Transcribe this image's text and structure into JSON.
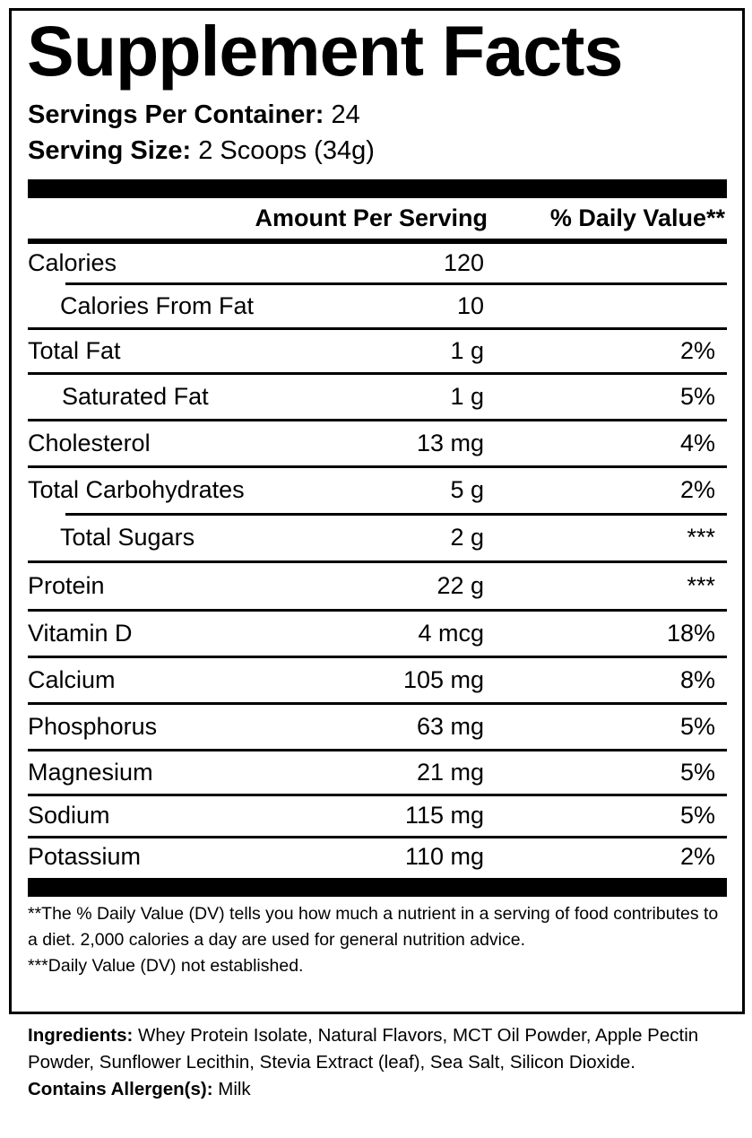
{
  "title": "Supplement Facts",
  "servings_per_container": {
    "label": "Servings Per Container:",
    "value": "24"
  },
  "serving_size": {
    "label": "Serving Size:",
    "value": "2 Scoops (34g)"
  },
  "header": {
    "amount": "Amount Per Serving",
    "dv": "% Daily Value**"
  },
  "rows": [
    {
      "label": "Calories",
      "amount": "120",
      "dv": ""
    },
    {
      "label": "Calories From Fat",
      "amount": "10",
      "dv": ""
    },
    {
      "label": "Total Fat",
      "amount": "1 g",
      "dv": "2%"
    },
    {
      "label": "Saturated Fat",
      "amount": "1 g",
      "dv": "5%"
    },
    {
      "label": "Cholesterol",
      "amount": "13 mg",
      "dv": "4%"
    },
    {
      "label": "Total Carbohydrates",
      "amount": "5 g",
      "dv": "2%"
    },
    {
      "label": "Total Sugars",
      "amount": "2 g",
      "dv": "***"
    },
    {
      "label": "Protein",
      "amount": "22 g",
      "dv": "***"
    },
    {
      "label": "Vitamin D",
      "amount": "4 mcg",
      "dv": "18%"
    },
    {
      "label": "Calcium",
      "amount": "105 mg",
      "dv": "8%"
    },
    {
      "label": "Phosphorus",
      "amount": "63 mg",
      "dv": "5%"
    },
    {
      "label": "Magnesium",
      "amount": "21 mg",
      "dv": "5%"
    },
    {
      "label": "Sodium",
      "amount": "115 mg",
      "dv": "5%"
    },
    {
      "label": "Potassium",
      "amount": "110 mg",
      "dv": "2%"
    }
  ],
  "footnotes": {
    "dv": "**The % Daily Value (DV) tells you how much a nutrient in a serving of food contributes to a diet. 2,000 calories a day are used for general nutrition advice.",
    "not_established": "***Daily Value (DV) not established."
  },
  "ingredients": {
    "label": "Ingredients:",
    "value": "Whey Protein Isolate, Natural Flavors, MCT Oil Powder, Apple Pectin Powder, Sunflower Lecithin, Stevia Extract (leaf), Sea Salt, Silicon Dioxide."
  },
  "allergens": {
    "label": "Contains Allergen(s):",
    "value": "Milk"
  }
}
